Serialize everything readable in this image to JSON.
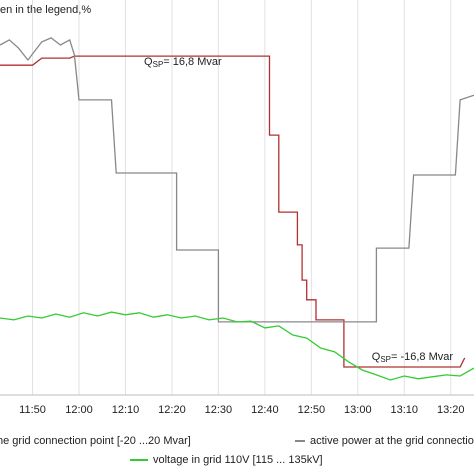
{
  "chart_data": {
    "type": "line",
    "title": "en in the legend,%",
    "xlim": [
      "11:43",
      "13:25"
    ],
    "ylim": [
      0,
      100
    ],
    "xticks": [
      "11:50",
      "12:00",
      "12:10",
      "12:20",
      "12:30",
      "12:40",
      "12:50",
      "13:00",
      "13:10",
      "13:20"
    ],
    "grid": true,
    "annotations": [
      {
        "label": "Q",
        "sub": "SP",
        "text": "= 16,8 Mvar",
        "x": "12:14",
        "y": 84.3
      },
      {
        "label": "Q",
        "sub": "SP",
        "text": "= -16,8 Mvar",
        "x": "13:03",
        "y": 9.6
      }
    ],
    "series": [
      {
        "name": "he grid connection point [-20 ...20 Mvar]",
        "color": "#b03030",
        "x": [
          "11:43",
          "11:50",
          "11:52",
          "11:58",
          "11:59",
          "12:41",
          "12:41",
          "12:43",
          "12:43",
          "12:47",
          "12:47",
          "12:48",
          "12:48",
          "12:49",
          "12:49",
          "12:51",
          "12:51",
          "12:57",
          "12:57",
          "13:22",
          "13:23"
        ],
        "values": [
          83.5,
          83.5,
          85.3,
          85.3,
          85.8,
          85.8,
          65.8,
          65.8,
          46.3,
          46.3,
          38,
          38,
          29.1,
          29.1,
          24.1,
          24.1,
          19,
          19,
          7.1,
          7.1,
          9.4
        ]
      },
      {
        "name": "active power at the grid connectio",
        "color": "#888888",
        "x": [
          "11:43",
          "11:45",
          "11:47",
          "11:49",
          "11:52",
          "11:54",
          "11:56",
          "11:58",
          "11:59",
          "12:00",
          "12:07",
          "12:08",
          "12:21",
          "12:21",
          "12:30",
          "12:30",
          "13:04",
          "13:04",
          "13:11",
          "13:12",
          "13:21",
          "13:22",
          "13:25"
        ],
        "values": [
          88.6,
          89.9,
          87.8,
          84.8,
          89.4,
          90.4,
          88.6,
          89.9,
          86.1,
          74.7,
          74.7,
          56.2,
          56.2,
          36.7,
          36.7,
          18.5,
          18.5,
          37.2,
          37.2,
          55.7,
          55.7,
          74.7,
          75.9
        ]
      },
      {
        "name": "voltage in grid 110V [115 ... 135kV]",
        "color": "#33cc33",
        "x": [
          "11:43",
          "11:46",
          "11:49",
          "11:52",
          "11:55",
          "11:58",
          "12:01",
          "12:04",
          "12:07",
          "12:10",
          "12:13",
          "12:16",
          "12:19",
          "12:22",
          "12:25",
          "12:28",
          "12:31",
          "12:34",
          "12:37",
          "12:40",
          "12:43",
          "12:46",
          "12:49",
          "12:52",
          "12:55",
          "12:58",
          "13:01",
          "13:04",
          "13:07",
          "13:10",
          "13:13",
          "13:16",
          "13:19",
          "13:22",
          "13:25"
        ],
        "values": [
          19.5,
          19,
          20,
          19.5,
          20.5,
          19.7,
          20.8,
          20,
          21,
          20.3,
          20.8,
          19.7,
          20.3,
          19.5,
          20,
          19,
          19.5,
          18.5,
          18.7,
          17,
          17.5,
          15.2,
          14.4,
          11.9,
          10.9,
          8.4,
          6.3,
          5.1,
          3.8,
          4.8,
          4.1,
          4.6,
          5.1,
          4.8,
          6.8
        ]
      }
    ]
  }
}
